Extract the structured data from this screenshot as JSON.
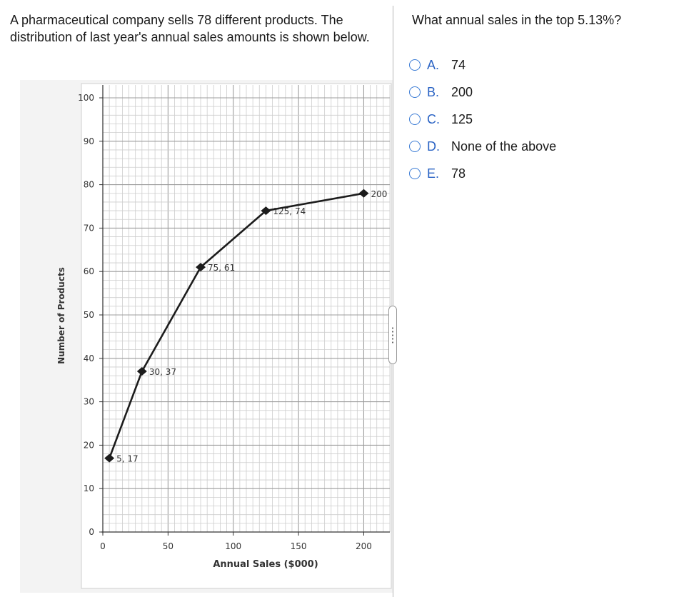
{
  "question": {
    "text": "A pharmaceutical company sells 78 different products. The distribution of last year's  annual sales amounts is shown below."
  },
  "prompt": "What annual sales in the top 5.13%?",
  "options": [
    {
      "letter": "A.",
      "text": "74"
    },
    {
      "letter": "B.",
      "text": "200"
    },
    {
      "letter": "C.",
      "text": "125"
    },
    {
      "letter": "D.",
      "text": "None of the above"
    },
    {
      "letter": "E.",
      "text": "78"
    }
  ],
  "chart_data": {
    "type": "line",
    "xlabel": "Annual Sales ($000)",
    "ylabel": "Number of Products",
    "xlim": [
      0,
      220
    ],
    "ylim": [
      0,
      100
    ],
    "x_ticks": [
      0,
      50,
      100,
      150,
      200
    ],
    "y_ticks": [
      0,
      10,
      20,
      30,
      40,
      50,
      60,
      70,
      80,
      90,
      100
    ],
    "grid": true,
    "series": [
      {
        "x": [
          5,
          30,
          75,
          125,
          200
        ],
        "values": [
          17,
          37,
          61,
          74,
          78
        ],
        "labels": [
          "5, 17",
          "30, 37",
          "75, 61",
          "125, 74",
          "200"
        ]
      }
    ]
  }
}
